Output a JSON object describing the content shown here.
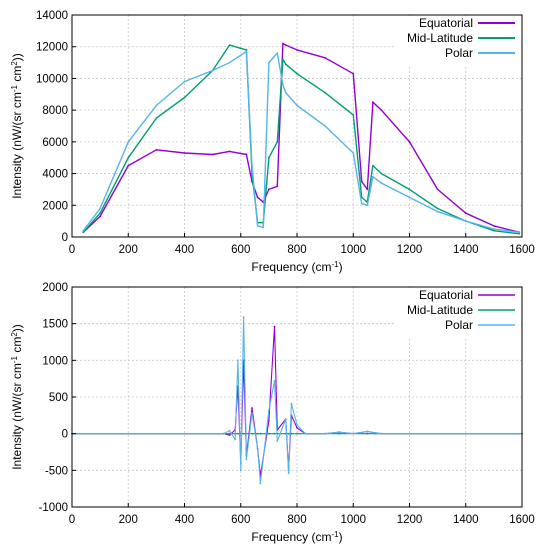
{
  "chart_data": [
    {
      "type": "line",
      "xlabel": "Frequency (cm",
      "xlabel_sup": "-1",
      "xlabel_end": ")",
      "ylabel": "Intensity (nW/(sr cm",
      "ylabel_sup1": "-1",
      "ylabel_mid": " cm",
      "ylabel_sup2": "2",
      "ylabel_end": "))",
      "xlim": [
        0,
        1600
      ],
      "ylim": [
        0,
        14000
      ],
      "xticks": [
        0,
        200,
        400,
        600,
        800,
        1000,
        1200,
        1400,
        1600
      ],
      "yticks": [
        0,
        2000,
        4000,
        6000,
        8000,
        10000,
        12000,
        14000
      ],
      "grid": true,
      "legend_position": "top-right",
      "series": [
        {
          "name": "Equatorial",
          "color": "#9400d3",
          "x": [
            40,
            100,
            200,
            300,
            400,
            500,
            560,
            620,
            640,
            660,
            680,
            700,
            730,
            750,
            760,
            800,
            900,
            1000,
            1030,
            1050,
            1070,
            1100,
            1200,
            1300,
            1400,
            1500,
            1590
          ],
          "y": [
            300,
            1300,
            4500,
            5500,
            5300,
            5200,
            5400,
            5200,
            3500,
            2500,
            2200,
            3000,
            3200,
            12200,
            12100,
            11800,
            11300,
            10300,
            3500,
            3000,
            8500,
            8000,
            6000,
            3000,
            1500,
            700,
            300
          ]
        },
        {
          "name": "Mid-Latitude",
          "color": "#009e73",
          "x": [
            40,
            100,
            200,
            300,
            400,
            500,
            560,
            620,
            640,
            660,
            680,
            700,
            730,
            750,
            760,
            800,
            900,
            1000,
            1030,
            1050,
            1070,
            1100,
            1200,
            1300,
            1400,
            1500,
            1590
          ],
          "y": [
            300,
            1500,
            5000,
            7500,
            8800,
            10500,
            12100,
            11800,
            4000,
            900,
            900,
            5000,
            6000,
            11200,
            10900,
            10300,
            9100,
            7700,
            2500,
            2200,
            4500,
            4000,
            3000,
            1800,
            1000,
            400,
            200
          ]
        },
        {
          "name": "Polar",
          "color": "#56b4e9",
          "x": [
            40,
            100,
            200,
            300,
            400,
            500,
            560,
            620,
            640,
            660,
            680,
            700,
            730,
            750,
            760,
            800,
            900,
            1000,
            1030,
            1050,
            1070,
            1100,
            1200,
            1300,
            1400,
            1500,
            1590
          ],
          "y": [
            400,
            1800,
            6000,
            8300,
            9800,
            10500,
            11000,
            11700,
            4500,
            700,
            600,
            11000,
            11600,
            9600,
            9100,
            8300,
            7000,
            5300,
            2100,
            2000,
            3800,
            3400,
            2500,
            1600,
            1000,
            500,
            300
          ]
        }
      ]
    },
    {
      "type": "line",
      "xlabel": "Frequency (cm",
      "xlabel_sup": "-1",
      "xlabel_end": ")",
      "ylabel": "Intensity (nW/(sr cm",
      "ylabel_sup1": "-1",
      "ylabel_mid": " cm",
      "ylabel_sup2": "2",
      "ylabel_end": "))",
      "xlim": [
        0,
        1600
      ],
      "ylim": [
        -1000,
        2000
      ],
      "xticks": [
        0,
        200,
        400,
        600,
        800,
        1000,
        1200,
        1400,
        1600
      ],
      "yticks": [
        -1000,
        -500,
        0,
        500,
        1000,
        1500,
        2000
      ],
      "grid": true,
      "legend_position": "top-right",
      "series": [
        {
          "name": "Equatorial",
          "color": "#9400d3",
          "x": [
            0,
            540,
            560,
            580,
            590,
            600,
            610,
            620,
            640,
            660,
            670,
            700,
            720,
            730,
            760,
            770,
            780,
            800,
            830,
            900,
            950,
            1000,
            1050,
            1080,
            1100,
            1600
          ],
          "y": [
            0,
            0,
            -20,
            50,
            650,
            -400,
            1000,
            -300,
            350,
            -200,
            -580,
            180,
            1460,
            50,
            200,
            -500,
            250,
            80,
            0,
            0,
            20,
            0,
            30,
            10,
            0,
            0
          ]
        },
        {
          "name": "Mid-Latitude",
          "color": "#009e73",
          "x": [
            0,
            540,
            560,
            580,
            590,
            600,
            610,
            620,
            640,
            660,
            670,
            700,
            720,
            730,
            760,
            770,
            780,
            800,
            830,
            900,
            950,
            1000,
            1050,
            1080,
            1100,
            1600
          ],
          "y": [
            0,
            0,
            0,
            0,
            0,
            0,
            0,
            0,
            0,
            0,
            0,
            0,
            0,
            0,
            0,
            0,
            0,
            0,
            0,
            0,
            0,
            0,
            0,
            0,
            0,
            0
          ]
        },
        {
          "name": "Polar",
          "color": "#56b4e9",
          "x": [
            0,
            540,
            560,
            580,
            590,
            600,
            610,
            620,
            640,
            660,
            670,
            700,
            720,
            730,
            760,
            770,
            780,
            800,
            830,
            900,
            950,
            1000,
            1050,
            1080,
            1100,
            1600
          ],
          "y": [
            0,
            0,
            40,
            -80,
            1000,
            -500,
            1590,
            -350,
            280,
            -200,
            -680,
            320,
            720,
            -100,
            200,
            -540,
            410,
            120,
            0,
            0,
            20,
            0,
            30,
            10,
            0,
            0
          ]
        }
      ]
    }
  ]
}
